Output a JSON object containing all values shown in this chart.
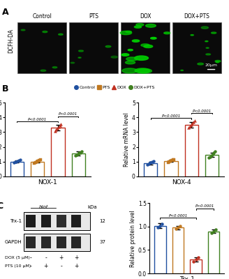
{
  "panel_A": {
    "labels": [
      "Control",
      "PTS",
      "DOX",
      "DOX+PTS"
    ],
    "ylabel": "DCFH-DA",
    "scale_text": "20μm"
  },
  "panel_B": {
    "legend": [
      "Control",
      "PTS",
      "DOX",
      "DOX+PTS"
    ],
    "colors": [
      "#2050a0",
      "#c07820",
      "#c03020",
      "#408020"
    ],
    "nox1": {
      "means": [
        1.0,
        1.0,
        3.3,
        1.55
      ],
      "errors": [
        0.08,
        0.08,
        0.18,
        0.12
      ],
      "scatter": [
        [
          0.92,
          0.97,
          1.0,
          1.03,
          1.07,
          1.1
        ],
        [
          0.9,
          0.94,
          1.0,
          1.04,
          1.08,
          1.1
        ],
        [
          3.05,
          3.15,
          3.25,
          3.35,
          3.45,
          3.55
        ],
        [
          1.4,
          1.45,
          1.52,
          1.58,
          1.62,
          1.68
        ]
      ],
      "ylabel": "Relative mRNA level",
      "xlabel": "NOX-1",
      "ylim": [
        0,
        5
      ],
      "yticks": [
        0,
        1,
        2,
        3,
        4,
        5
      ],
      "sig1": "P<0.0001",
      "sig2": "P<0.0001"
    },
    "nox4": {
      "means": [
        0.9,
        1.05,
        3.5,
        1.45
      ],
      "errors": [
        0.1,
        0.08,
        0.2,
        0.15
      ],
      "scatter": [
        [
          0.78,
          0.85,
          0.92,
          0.95,
          0.98,
          1.02
        ],
        [
          0.95,
          1.0,
          1.05,
          1.08,
          1.1,
          1.14
        ],
        [
          3.3,
          3.4,
          3.5,
          3.6,
          3.7,
          3.8
        ],
        [
          1.25,
          1.32,
          1.42,
          1.52,
          1.6,
          1.68
        ]
      ],
      "ylabel": "Relative mRNA level",
      "xlabel": "NOX-4",
      "ylim": [
        0,
        5
      ],
      "yticks": [
        0,
        1,
        2,
        3,
        4,
        5
      ],
      "sig1": "P<0.0001",
      "sig2": "P<0.0001"
    }
  },
  "panel_C": {
    "blot_labels": [
      "Trx-1",
      "GAPDH"
    ],
    "kda_labels": [
      "12",
      "37"
    ],
    "dox_row": [
      "DOX (5 μM)",
      "-",
      "-",
      "+",
      "+"
    ],
    "pts_row": [
      "PTS (10 μM)",
      "-",
      "+",
      "-",
      "+"
    ],
    "bar_chart": {
      "means": [
        1.02,
        0.98,
        0.3,
        0.9
      ],
      "errors": [
        0.05,
        0.04,
        0.05,
        0.04
      ],
      "colors": [
        "#2050a0",
        "#c07820",
        "#c03020",
        "#408020"
      ],
      "ylabel": "Relative protein level",
      "xlabel": "Trx-1",
      "ylim": [
        0,
        1.5
      ],
      "yticks": [
        0.0,
        0.5,
        1.0,
        1.5
      ],
      "sig1": "P<0.0001",
      "sig2": "P<0.0001"
    }
  }
}
